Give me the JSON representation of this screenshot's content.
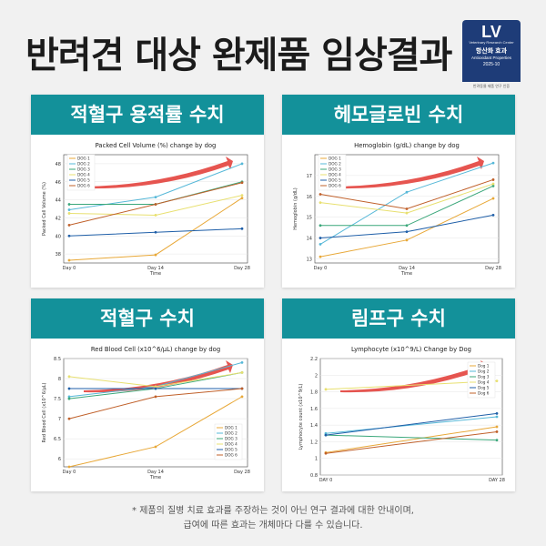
{
  "headline": "반려견 대상 완제품 임상결과",
  "badge": {
    "logo": "LV",
    "small_text": "Veterinary Research Center",
    "title": "항산화 효과",
    "subtitle": "Antioxidant Properties",
    "year": "2025-10",
    "bottom": "반려동물 제품 연구 인증"
  },
  "footnote": [
    "* 제품의 질병 치료 효과를 주장하는 것이 아닌 연구 결과에 대한 안내이며,",
    "급여에 따른 효과는 개체마다 다를 수 있습니다."
  ],
  "colors": {
    "dog1": "#e8a838",
    "dog2": "#56b8d8",
    "dog3": "#3aa77a",
    "dog4": "#e8e070",
    "dog5": "#1f5fa8",
    "dog6": "#c0602a",
    "accent": "#13919a",
    "arrow": "#e0302a"
  },
  "chart_data": [
    {
      "panel_title": "적혈구 용적률 수치",
      "type": "line",
      "title": "Packed Cell Volume (%) change by dog",
      "xlabel": "Time",
      "ylabel": "Packed Cell Volume (%)",
      "categories": [
        "Day 0",
        "Day 14",
        "Day 28"
      ],
      "ylim": [
        37,
        49
      ],
      "yticks": [
        38,
        40,
        42,
        44,
        46,
        48
      ],
      "legend": "top-left",
      "series": [
        {
          "name": "DOG 1",
          "values": [
            37.3,
            37.9,
            44.2
          ]
        },
        {
          "name": "DOG 2",
          "values": [
            42.9,
            44.3,
            48.0
          ]
        },
        {
          "name": "DOG 3",
          "values": [
            43.5,
            43.5,
            46.0
          ]
        },
        {
          "name": "DOG 4",
          "values": [
            42.5,
            42.3,
            44.5
          ]
        },
        {
          "name": "DOG 5",
          "values": [
            40.0,
            40.4,
            40.8
          ]
        },
        {
          "name": "DOG 6",
          "values": [
            41.2,
            43.5,
            45.9
          ]
        }
      ]
    },
    {
      "panel_title": "헤모글로빈 수치",
      "type": "line",
      "title": "Hemoglobin (g/dL) change by dog",
      "xlabel": "Time",
      "ylabel": "Hemoglobin (g/dL)",
      "categories": [
        "Day 0",
        "Day 14",
        "Day 28"
      ],
      "ylim": [
        12.8,
        18
      ],
      "yticks": [
        13,
        14,
        15,
        16,
        17
      ],
      "legend": "top-left",
      "series": [
        {
          "name": "DOG 1",
          "values": [
            13.1,
            13.9,
            15.9
          ]
        },
        {
          "name": "DOG 2",
          "values": [
            13.7,
            16.2,
            17.6
          ]
        },
        {
          "name": "DOG 3",
          "values": [
            14.6,
            14.6,
            16.5
          ]
        },
        {
          "name": "DOG 4",
          "values": [
            15.7,
            15.2,
            16.6
          ]
        },
        {
          "name": "DOG 5",
          "values": [
            14.0,
            14.3,
            15.1
          ]
        },
        {
          "name": "DOG 6",
          "values": [
            16.1,
            15.4,
            16.8
          ]
        }
      ]
    },
    {
      "panel_title": "적혈구 수치",
      "type": "line",
      "title": "Red Blood Cell (x10^6/μL) change by dog",
      "xlabel": "Time",
      "ylabel": "Red Blood Cell (x10^6/μL)",
      "categories": [
        "Day 0",
        "Day 14",
        "Day 28"
      ],
      "ylim": [
        5.8,
        8.5
      ],
      "yticks": [
        6.0,
        6.5,
        7.0,
        7.5,
        8.0,
        8.5
      ],
      "legend": "bottom-right",
      "series": [
        {
          "name": "DOG 1",
          "values": [
            5.8,
            6.3,
            7.55
          ]
        },
        {
          "name": "DOG 2",
          "values": [
            7.55,
            7.8,
            8.4
          ]
        },
        {
          "name": "DOG 3",
          "values": [
            7.5,
            7.75,
            8.15
          ]
        },
        {
          "name": "DOG 4",
          "values": [
            8.05,
            7.8,
            8.15
          ]
        },
        {
          "name": "DOG 5",
          "values": [
            7.75,
            7.75,
            7.75
          ]
        },
        {
          "name": "DOG 6",
          "values": [
            7.0,
            7.55,
            7.75
          ]
        }
      ]
    },
    {
      "panel_title": "림프구 수치",
      "type": "line",
      "title": "Lymphocyte (x10^9/L) Change by Dog",
      "xlabel": "",
      "ylabel": "Lymphocyte count (x10^9/L)",
      "categories": [
        "DAY 0",
        "DAY 28"
      ],
      "ylim": [
        0.8,
        2.2
      ],
      "yticks": [
        0.8,
        1.0,
        1.2,
        1.4,
        1.6,
        1.8,
        2.0,
        2.2
      ],
      "legend": "top-right",
      "series": [
        {
          "name": "Dog 1",
          "values": [
            1.07,
            1.38
          ]
        },
        {
          "name": "Dog 2",
          "values": [
            1.3,
            1.5
          ]
        },
        {
          "name": "Dog 3",
          "values": [
            1.28,
            1.22
          ]
        },
        {
          "name": "Dog 4",
          "values": [
            1.83,
            1.93
          ]
        },
        {
          "name": "Dog 5",
          "values": [
            1.28,
            1.54
          ]
        },
        {
          "name": "Dog 6",
          "values": [
            1.06,
            1.32
          ]
        }
      ]
    }
  ]
}
